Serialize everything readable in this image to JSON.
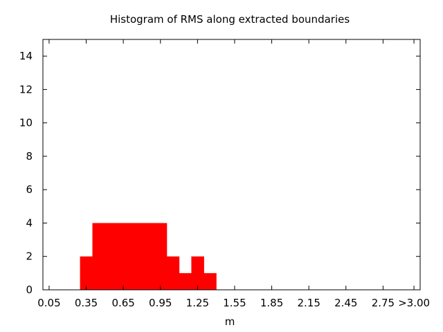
{
  "chart_data": {
    "type": "bar",
    "title": "Histogram of RMS along extracted boundaries",
    "xlabel": "m",
    "ylabel": "",
    "xlim": [
      0.0,
      3.05
    ],
    "ylim": [
      0,
      15
    ],
    "bin_width": 0.1,
    "xtick_values": [
      0.05,
      0.35,
      0.65,
      0.95,
      1.25,
      1.55,
      1.85,
      2.15,
      2.45,
      2.75,
      3.0
    ],
    "xtick_labels": [
      "0.05",
      "0.35",
      "0.65",
      "0.95",
      "1.25",
      "1.55",
      "1.85",
      "2.15",
      "2.45",
      "2.75",
      ">3.00"
    ],
    "ytick_values": [
      0,
      2,
      4,
      6,
      8,
      10,
      12,
      14
    ],
    "ytick_labels": [
      "0",
      "2",
      "4",
      "6",
      "8",
      "10",
      "12",
      "14"
    ],
    "x": [
      0.35,
      0.45,
      0.55,
      0.65,
      0.75,
      0.85,
      0.95,
      1.05,
      1.15,
      1.25,
      1.35
    ],
    "values": [
      2,
      4,
      4,
      4,
      4,
      4,
      4,
      2,
      1,
      2,
      1
    ],
    "bar_color": "#ff0000",
    "grid": false,
    "legend": "none"
  }
}
